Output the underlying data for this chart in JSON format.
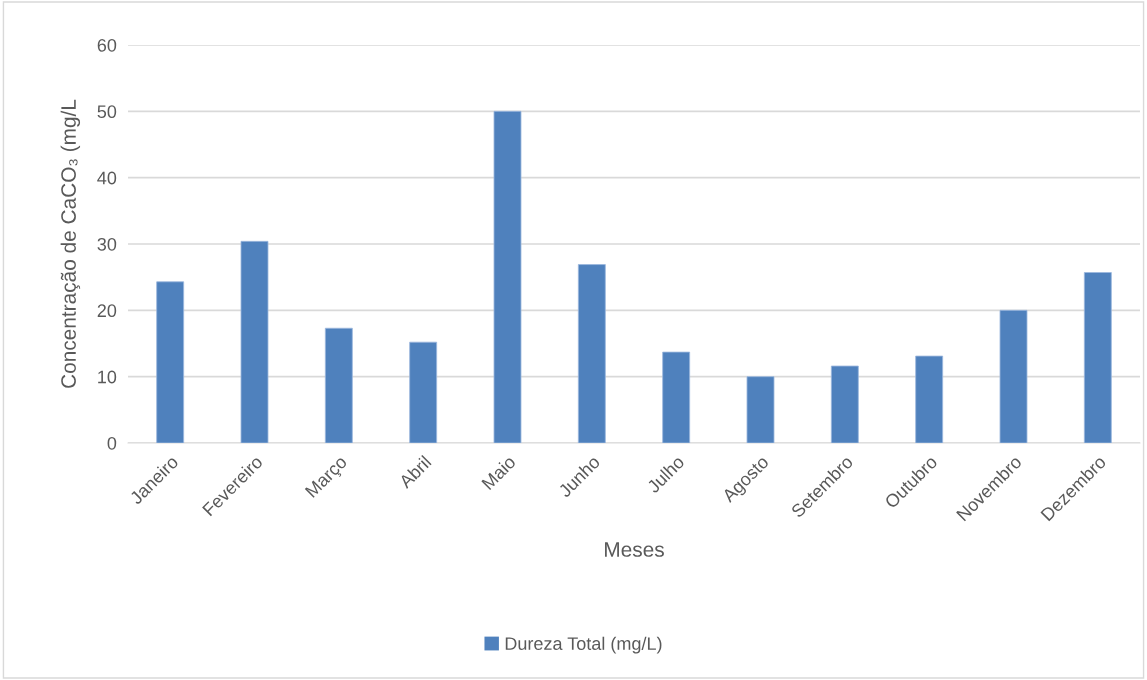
{
  "chart_data": {
    "type": "bar",
    "xlabel": "Meses",
    "ylabel": "Concentração de CaCO₃ (mg/L",
    "categories": [
      "Janeiro",
      "Fevereiro",
      "Março",
      "Abril",
      "Maio",
      "Junho",
      "Julho",
      "Agosto",
      "Setembro",
      "Outubro",
      "Novembro",
      "Dezembro"
    ],
    "series": [
      {
        "name": "Dureza Total (mg/L)",
        "color": "#4f81bd",
        "values": [
          24.3,
          30.4,
          17.3,
          15.2,
          50,
          26.9,
          13.7,
          10,
          11.6,
          13.1,
          20,
          25.7
        ]
      }
    ],
    "ylim": [
      0,
      60
    ],
    "yticks": [
      0,
      10,
      20,
      30,
      40,
      50,
      60
    ],
    "grid": "y",
    "legend": "bottom"
  }
}
